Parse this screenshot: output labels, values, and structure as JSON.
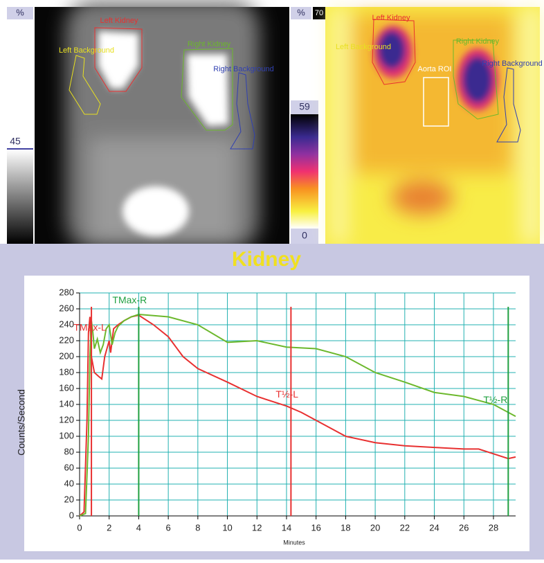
{
  "images": {
    "left": {
      "unit": "%",
      "scale_label": "45",
      "rois": [
        "Left Kidney",
        "Left Background",
        "Right Kidney",
        "Right Background"
      ]
    },
    "right": {
      "unit": "%",
      "max_label": "70",
      "scale_top": "59",
      "scale_bottom": "0",
      "rois": [
        "Left Kidney",
        "Left Background",
        "Aorta ROI",
        "Right Kidney",
        "Right Background"
      ]
    }
  },
  "chart_data": {
    "type": "line",
    "title": "Kidney",
    "xlabel": "Minutes",
    "ylabel": "Counts/Second",
    "xlim": [
      0,
      29.5
    ],
    "ylim": [
      0,
      280
    ],
    "xticks": [
      0,
      2,
      4,
      6,
      8,
      10,
      12,
      14,
      16,
      18,
      20,
      22,
      24,
      26,
      28
    ],
    "yticks": [
      0,
      20,
      40,
      60,
      80,
      100,
      120,
      140,
      160,
      180,
      200,
      220,
      240,
      260,
      280
    ],
    "grid": true,
    "series": [
      {
        "color": "#e83030",
        "x": [
          0,
          0.3,
          0.5,
          0.6,
          0.7,
          0.8,
          1,
          1.3,
          1.5,
          1.7,
          2,
          2.1,
          2.3,
          2.6,
          3,
          3.5,
          4,
          5,
          6,
          7,
          8,
          10,
          12,
          14,
          15,
          16,
          18,
          20,
          22,
          24,
          26,
          27,
          28,
          29,
          29.5
        ],
        "values": [
          0,
          5,
          120,
          230,
          250,
          200,
          180,
          175,
          172,
          200,
          220,
          205,
          235,
          240,
          245,
          250,
          252,
          240,
          225,
          200,
          185,
          168,
          150,
          138,
          130,
          120,
          100,
          92,
          88,
          86,
          84,
          84,
          78,
          72,
          74
        ]
      },
      {
        "color": "#6cb82c",
        "x": [
          0,
          0.4,
          0.6,
          0.7,
          0.8,
          0.9,
          1,
          1.2,
          1.4,
          1.6,
          1.8,
          2,
          2.2,
          2.4,
          2.6,
          3,
          3.5,
          4,
          6,
          8,
          10,
          12,
          14,
          16,
          18,
          20,
          22,
          24,
          26,
          28,
          29.5
        ],
        "values": [
          0,
          3,
          100,
          200,
          245,
          230,
          210,
          222,
          205,
          215,
          235,
          240,
          215,
          230,
          238,
          245,
          250,
          253,
          250,
          240,
          218,
          220,
          212,
          210,
          200,
          180,
          168,
          155,
          150,
          140,
          125
        ]
      }
    ],
    "markers": [
      {
        "label": "TMax-L",
        "x": 0.8,
        "color": "#e83030"
      },
      {
        "label": "TMax-R",
        "x": 4,
        "color": "#20a040"
      },
      {
        "label": "T½-L",
        "x": 14.3,
        "color": "#e83030"
      },
      {
        "label": "T½-R",
        "x": 29,
        "color": "#20a040"
      }
    ]
  }
}
